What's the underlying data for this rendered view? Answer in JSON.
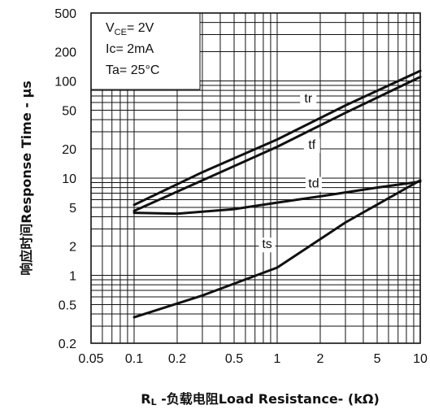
{
  "chart_data": {
    "type": "line",
    "xscale": "log",
    "yscale": "log",
    "xlim": [
      0.05,
      10
    ],
    "ylim": [
      0.2,
      500
    ],
    "grid": true,
    "xlabel": "RL -负载电阻Load Resistance- (kΩ)",
    "xlabel_parts": {
      "r": "R",
      "sub": "L",
      "rest": " -负载电阻Load Resistance- (kΩ)"
    },
    "ylabel": "响应时间Response Time - μs",
    "x_ticks": [
      {
        "v": 0.05,
        "label": "0.05"
      },
      {
        "v": 0.1,
        "label": "0.1"
      },
      {
        "v": 0.2,
        "label": "0.2"
      },
      {
        "v": 0.5,
        "label": "0.5"
      },
      {
        "v": 1,
        "label": "1"
      },
      {
        "v": 2,
        "label": "2"
      },
      {
        "v": 5,
        "label": "5"
      },
      {
        "v": 10,
        "label": "10"
      }
    ],
    "y_ticks": [
      {
        "v": 500,
        "label": "500"
      },
      {
        "v": 200,
        "label": "200"
      },
      {
        "v": 100,
        "label": "100"
      },
      {
        "v": 50,
        "label": "50"
      },
      {
        "v": 20,
        "label": "20"
      },
      {
        "v": 10,
        "label": "10"
      },
      {
        "v": 5,
        "label": "5"
      },
      {
        "v": 2,
        "label": "2"
      },
      {
        "v": 1,
        "label": "1"
      },
      {
        "v": 0.5,
        "label": "0.5"
      },
      {
        "v": 0.2,
        "label": "0.2"
      }
    ],
    "conditions": {
      "vce": {
        "v": "V",
        "sub": "CE",
        "rest": "= 2V"
      },
      "ic": "Ic= 2mA",
      "ta": "Ta= 25°C"
    },
    "series": [
      {
        "name": "tr",
        "label_at": [
          1.65,
          60
        ],
        "x": [
          0.1,
          0.3,
          1,
          3,
          10
        ],
        "y": [
          5.3,
          11.5,
          25,
          56,
          127
        ]
      },
      {
        "name": "tf",
        "label_at": [
          1.75,
          20
        ],
        "x": [
          0.1,
          0.3,
          1,
          3,
          10
        ],
        "y": [
          4.6,
          9.5,
          21,
          47,
          110
        ]
      },
      {
        "name": "td",
        "label_at": [
          1.8,
          8
        ],
        "x": [
          0.1,
          0.2,
          0.5,
          1,
          2,
          5,
          10
        ],
        "y": [
          4.4,
          4.3,
          4.8,
          5.6,
          6.5,
          8,
          9.2
        ]
      },
      {
        "name": "ts",
        "label_at": [
          0.85,
          1.9
        ],
        "x": [
          0.1,
          0.3,
          1,
          3,
          10
        ],
        "y": [
          0.37,
          0.62,
          1.2,
          3.5,
          9.5
        ]
      }
    ]
  }
}
